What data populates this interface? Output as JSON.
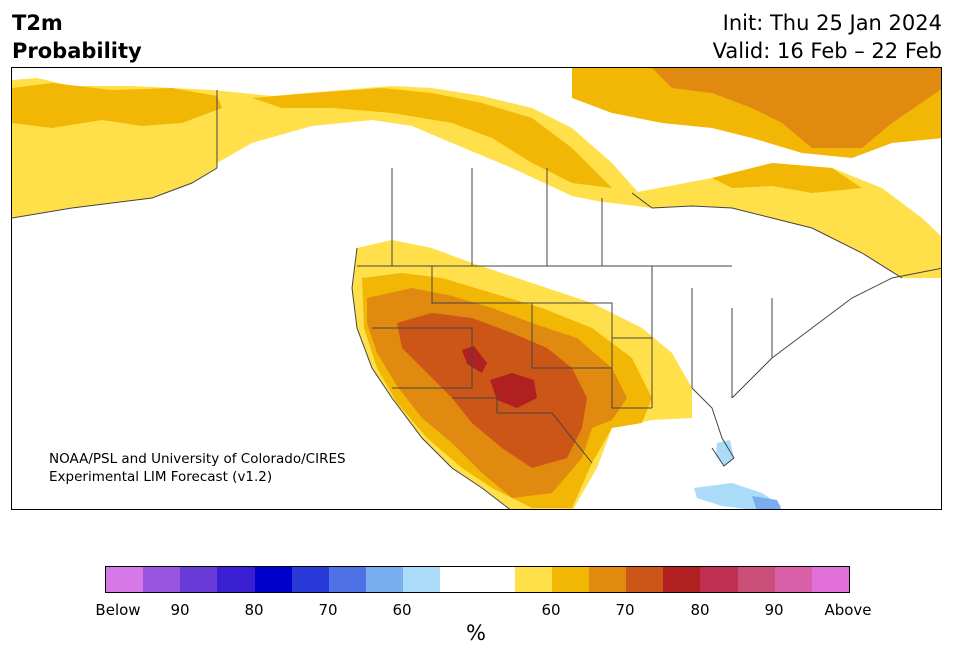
{
  "header": {
    "title_line1": "T2m",
    "title_line2": "Probability",
    "init_line": "Init: Thu 25 Jan 2024",
    "valid_line": "Valid: 16 Feb – 22 Feb"
  },
  "credit": {
    "line1": "NOAA/PSL and University of Colorado/CIRES",
    "line2": "Experimental LIM Forecast (v1.2)"
  },
  "colorbar": {
    "colors": [
      "#d678e8",
      "#9a55e0",
      "#6a3ad8",
      "#3a1ed2",
      "#0000cc",
      "#2a3ad8",
      "#4e72e6",
      "#78aef0",
      "#aadcfa",
      "#ffffff",
      "#ffe04a",
      "#f2b705",
      "#e08a10",
      "#cc5518",
      "#b02020",
      "#c03050",
      "#cc4f7a",
      "#d85fa8",
      "#e070d8"
    ],
    "tick_labels": [
      "Below",
      "90",
      "80",
      "70",
      "60",
      "60",
      "70",
      "80",
      "90",
      "Above"
    ],
    "unit_label": "%"
  },
  "map": {
    "land_color": "#ffffff",
    "outline_color": "#444444",
    "categories": {
      "above_60": "#ffe04a",
      "above_65": "#f2b705",
      "above_70": "#e08a10",
      "above_75": "#cc5518",
      "above_80": "#b02020",
      "below_60": "#aadcfa",
      "below_65": "#78aef0"
    }
  }
}
